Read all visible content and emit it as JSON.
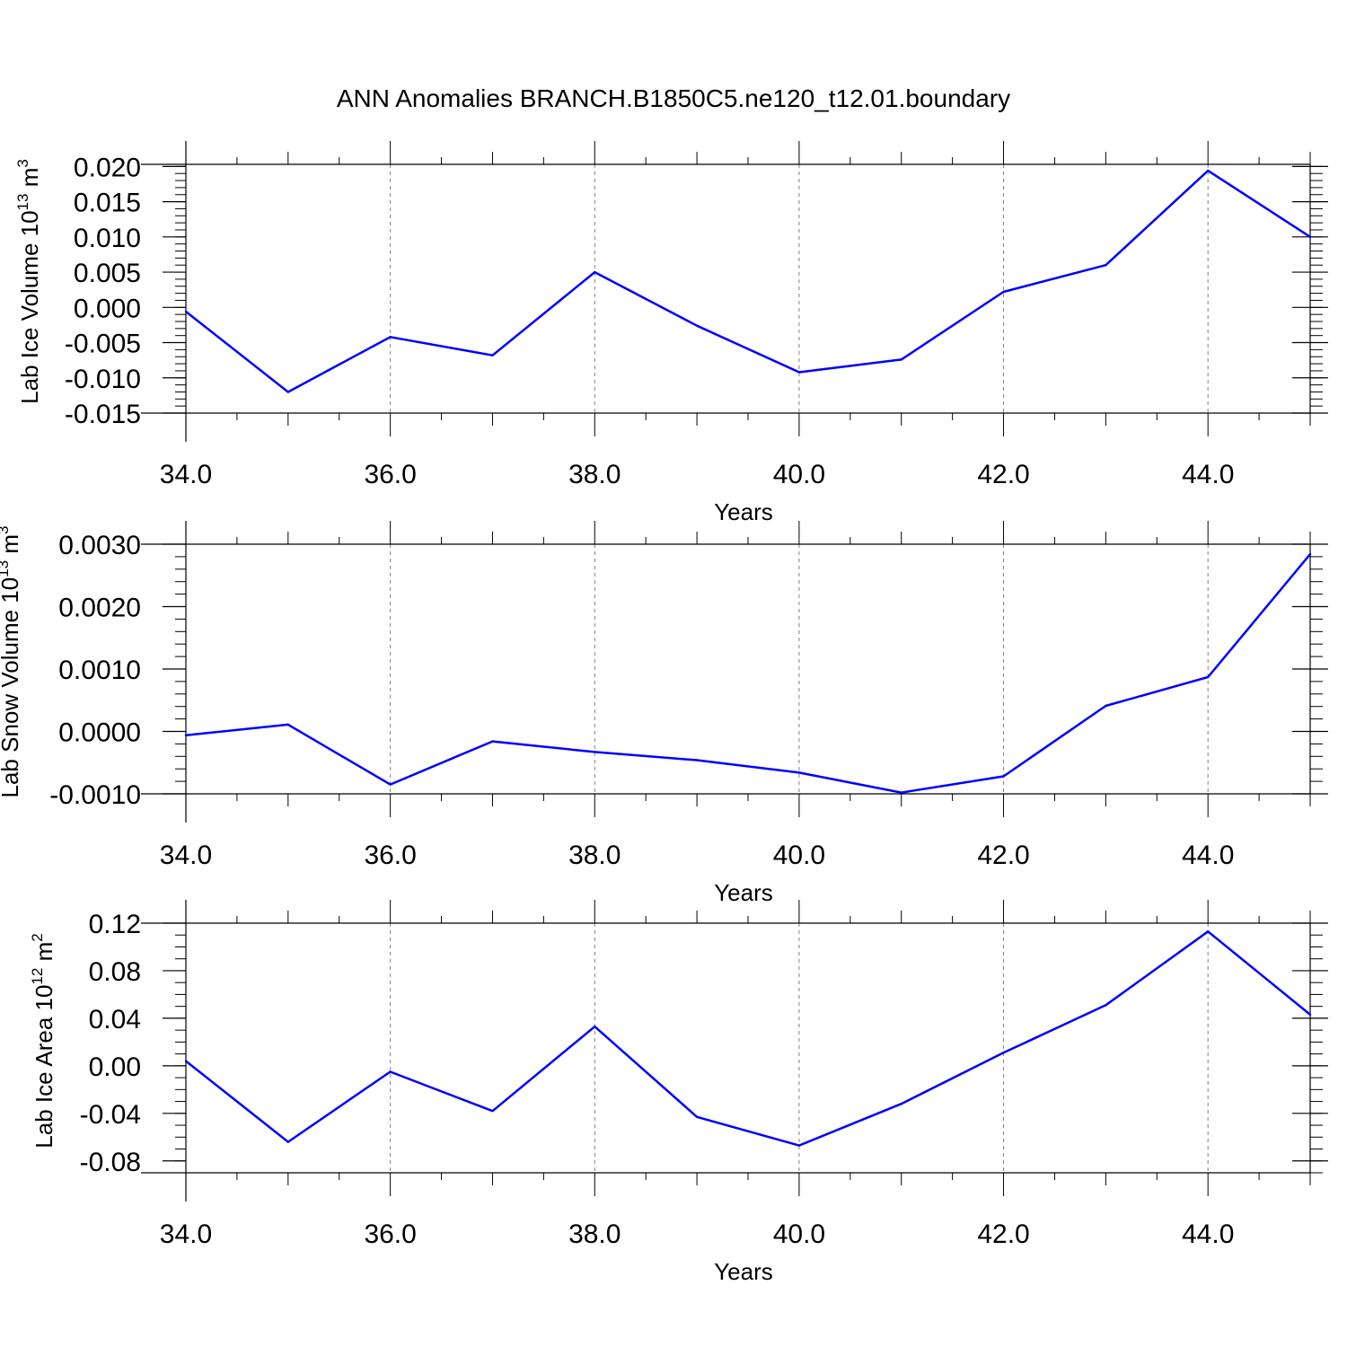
{
  "title": "ANN Anomalies BRANCH.B1850C5.ne120_t12.01.boundary",
  "colors": {
    "line": "#0000ff",
    "axis": "#000000",
    "grid": "#808080",
    "background": "#ffffff"
  },
  "chart_data": [
    {
      "type": "line",
      "xlabel": "Years",
      "ylabel_text": "Lab Ice Volume 10",
      "ylabel_exp": "13",
      "ylabel_unit": " m",
      "ylabel_unit_exp": "3",
      "xlim": [
        34,
        45
      ],
      "ylim": [
        -0.015,
        0.0203
      ],
      "xticks": [
        34,
        36,
        38,
        40,
        42,
        44
      ],
      "xtick_labels": [
        "34.0",
        "36.0",
        "38.0",
        "40.0",
        "42.0",
        "44.0"
      ],
      "yticks": [
        -0.015,
        -0.01,
        -0.005,
        0,
        0.005,
        0.01,
        0.015,
        0.02
      ],
      "ytick_labels": [
        "-0.015",
        "-0.010",
        "-0.005",
        "0.000",
        "0.005",
        "0.010",
        "0.015",
        "0.020"
      ],
      "yminor_step": 0.001,
      "grid": "vertical dashed at major x ticks",
      "x": [
        34,
        35,
        36,
        37,
        38,
        39,
        40,
        41,
        42,
        43,
        44,
        45
      ],
      "y": [
        -0.0006,
        -0.012,
        -0.0042,
        -0.0068,
        0.005,
        -0.0026,
        -0.0092,
        -0.0074,
        0.0022,
        0.006,
        0.0194,
        0.01
      ]
    },
    {
      "type": "line",
      "xlabel": "Years",
      "ylabel_text": "Lab Snow Volume 10",
      "ylabel_exp": "13",
      "ylabel_unit": " m",
      "ylabel_unit_exp": "3",
      "xlim": [
        34,
        45
      ],
      "ylim": [
        -0.001,
        0.003
      ],
      "xticks": [
        34,
        36,
        38,
        40,
        42,
        44
      ],
      "xtick_labels": [
        "34.0",
        "36.0",
        "38.0",
        "40.0",
        "42.0",
        "44.0"
      ],
      "yticks": [
        -0.001,
        0,
        0.001,
        0.002,
        0.003
      ],
      "ytick_labels": [
        "-0.0010",
        "0.0000",
        "0.0010",
        "0.0020",
        "0.0030"
      ],
      "yminor_step": 0.0002,
      "grid": "vertical dashed at major x ticks",
      "x": [
        34,
        35,
        36,
        37,
        38,
        39,
        40,
        41,
        42,
        43,
        44,
        45
      ],
      "y": [
        -6e-05,
        0.00011,
        -0.00085,
        -0.00016,
        -0.00033,
        -0.00046,
        -0.00066,
        -0.00098,
        -0.00072,
        0.00041,
        0.00087,
        0.00284
      ]
    },
    {
      "type": "line",
      "xlabel": "Years",
      "ylabel_text": "Lab Ice Area 10",
      "ylabel_exp": "12",
      "ylabel_unit": " m",
      "ylabel_unit_exp": "2",
      "xlim": [
        34,
        45
      ],
      "ylim": [
        -0.09,
        0.12
      ],
      "xticks": [
        34,
        36,
        38,
        40,
        42,
        44
      ],
      "xtick_labels": [
        "34.0",
        "36.0",
        "38.0",
        "40.0",
        "42.0",
        "44.0"
      ],
      "yticks": [
        -0.08,
        -0.04,
        0,
        0.04,
        0.08,
        0.12
      ],
      "ytick_labels": [
        "-0.08",
        "-0.04",
        "0.00",
        "0.04",
        "0.08",
        "0.12"
      ],
      "yminor_step": 0.01,
      "grid": "vertical dashed at major x ticks",
      "x": [
        34,
        35,
        36,
        37,
        38,
        39,
        40,
        41,
        42,
        43,
        44,
        45
      ],
      "y": [
        0.004,
        -0.064,
        -0.005,
        -0.038,
        0.033,
        -0.043,
        -0.067,
        -0.032,
        0.011,
        0.051,
        0.113,
        0.043
      ]
    }
  ]
}
